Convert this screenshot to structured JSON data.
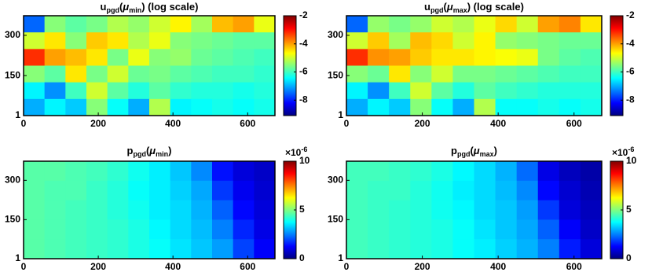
{
  "chart_data": [
    {
      "type": "heatmap",
      "title": [
        {
          "text": "u"
        },
        {
          "text": "pgd",
          "sub": true
        },
        {
          "text": "("
        },
        {
          "text": "μ",
          "italic": true
        },
        {
          "text": "min",
          "sub": true
        },
        {
          "text": ") (log scale)"
        }
      ],
      "colormap": "jet",
      "clim": [
        -9.1,
        -2
      ],
      "cticks": [
        -2,
        -4,
        -6,
        -8
      ],
      "xlim": [
        0,
        673
      ],
      "ylim": [
        1,
        373
      ],
      "xticks": [
        0,
        200,
        400,
        600
      ],
      "yticks": [
        1,
        150,
        300
      ],
      "z": [
        [
          -7.5,
          -5.5,
          -5.8,
          -5.6,
          -5.2,
          -5.4,
          -5.0,
          -4.6,
          -5.3,
          -4.2,
          -4.0,
          -4.8
        ],
        [
          -5.0,
          -4.5,
          -5.5,
          -4.3,
          -4.5,
          -5.2,
          -4.8,
          -5.5,
          -5.6,
          -5.7,
          -5.8,
          -5.8
        ],
        [
          -3.2,
          -4.0,
          -4.2,
          -4.5,
          -5.6,
          -4.8,
          -5.5,
          -5.4,
          -5.7,
          -5.8,
          -5.9,
          -6.0
        ],
        [
          -5.5,
          -5.8,
          -4.5,
          -5.6,
          -5.0,
          -5.7,
          -5.6,
          -5.8,
          -5.9,
          -6.0,
          -6.0,
          -6.1
        ],
        [
          -6.5,
          -7.2,
          -6.0,
          -5.0,
          -5.8,
          -6.2,
          -5.8,
          -6.1,
          -6.2,
          -6.2,
          -6.3,
          -6.2
        ],
        [
          -7.0,
          -6.5,
          -6.8,
          -5.5,
          -6.4,
          -7.0,
          -5.2,
          -6.5,
          -6.4,
          -6.3,
          -6.4,
          -6.3
        ]
      ]
    },
    {
      "type": "heatmap",
      "title": [
        {
          "text": "u"
        },
        {
          "text": "pgd",
          "sub": true
        },
        {
          "text": "("
        },
        {
          "text": "μ",
          "italic": true
        },
        {
          "text": "max",
          "sub": true
        },
        {
          "text": ") (log scale)"
        }
      ],
      "colormap": "jet",
      "clim": [
        -9.1,
        -2
      ],
      "cticks": [
        -2,
        -4,
        -6,
        -8
      ],
      "xlim": [
        0,
        673
      ],
      "ylim": [
        1,
        373
      ],
      "xticks": [
        0,
        200,
        400,
        600
      ],
      "yticks": [
        1,
        150,
        300
      ],
      "z": [
        [
          -7.5,
          -5.4,
          -5.6,
          -5.4,
          -5.0,
          -5.2,
          -4.8,
          -4.4,
          -5.0,
          -4.0,
          -3.8,
          -4.5
        ],
        [
          -5.0,
          -4.3,
          -5.3,
          -4.2,
          -4.4,
          -5.0,
          -4.6,
          -5.4,
          -5.5,
          -5.6,
          -5.7,
          -5.7
        ],
        [
          -3.2,
          -3.9,
          -4.0,
          -4.3,
          -4.5,
          -4.5,
          -4.6,
          -4.7,
          -4.8,
          -5.6,
          -5.8,
          -5.9
        ],
        [
          -5.5,
          -5.7,
          -4.5,
          -5.5,
          -5.0,
          -5.6,
          -5.6,
          -5.7,
          -5.8,
          -5.9,
          -6.0,
          -6.0
        ],
        [
          -6.5,
          -7.2,
          -6.0,
          -5.0,
          -5.8,
          -6.2,
          -5.8,
          -6.0,
          -6.1,
          -6.2,
          -6.2,
          -6.2
        ],
        [
          -7.0,
          -6.5,
          -6.8,
          -5.5,
          -6.4,
          -7.0,
          -5.2,
          -6.4,
          -6.4,
          -6.3,
          -6.4,
          -6.3
        ]
      ]
    },
    {
      "type": "heatmap",
      "title": [
        {
          "text": "p"
        },
        {
          "text": "pgd",
          "sub": true
        },
        {
          "text": "("
        },
        {
          "text": "μ",
          "italic": true
        },
        {
          "text": "min",
          "sub": true
        },
        {
          "text": ")"
        }
      ],
      "colormap": "jet",
      "clim": [
        0,
        10
      ],
      "cticks": [
        0,
        5,
        10
      ],
      "cexponent": {
        "base": "×10",
        "exponent": "-6"
      },
      "xlim": [
        0,
        673
      ],
      "ylim": [
        1,
        373
      ],
      "xticks": [
        0,
        200,
        400,
        600
      ],
      "yticks": [
        1,
        150,
        300
      ],
      "z": [
        [
          4.6,
          4.6,
          4.5,
          4.4,
          4.2,
          3.9,
          3.6,
          3.2,
          2.6,
          1.4,
          0.9,
          0.7
        ],
        [
          4.6,
          4.5,
          4.5,
          4.3,
          4.1,
          3.8,
          3.6,
          3.3,
          2.9,
          1.8,
          1.1,
          0.8
        ],
        [
          4.6,
          4.5,
          4.4,
          4.3,
          4.1,
          3.9,
          3.6,
          3.4,
          3.0,
          2.2,
          1.3,
          0.9
        ],
        [
          4.6,
          4.5,
          4.4,
          4.3,
          4.2,
          4.0,
          3.7,
          3.4,
          3.1,
          2.5,
          1.6,
          1.0
        ],
        [
          4.6,
          4.5,
          4.4,
          4.3,
          4.2,
          4.0,
          3.8,
          3.5,
          3.2,
          2.8,
          1.9,
          1.2
        ]
      ]
    },
    {
      "type": "heatmap",
      "title": [
        {
          "text": "p"
        },
        {
          "text": "pgd",
          "sub": true
        },
        {
          "text": "("
        },
        {
          "text": "μ",
          "italic": true
        },
        {
          "text": "max",
          "sub": true
        },
        {
          "text": ")"
        }
      ],
      "colormap": "jet",
      "clim": [
        0,
        10
      ],
      "cticks": [
        0,
        5,
        10
      ],
      "cexponent": {
        "base": "×10",
        "exponent": "-6"
      },
      "xlim": [
        0,
        673
      ],
      "ylim": [
        1,
        373
      ],
      "xticks": [
        0,
        200,
        400,
        600
      ],
      "yticks": [
        1,
        150,
        300
      ],
      "z": [
        [
          4.4,
          4.4,
          4.3,
          4.2,
          4.0,
          3.7,
          3.4,
          3.0,
          2.3,
          1.0,
          0.6,
          0.4
        ],
        [
          4.4,
          4.3,
          4.3,
          4.1,
          3.9,
          3.6,
          3.4,
          3.1,
          2.6,
          1.3,
          0.8,
          0.5
        ],
        [
          4.4,
          4.3,
          4.2,
          4.1,
          3.9,
          3.7,
          3.4,
          3.2,
          2.8,
          1.8,
          0.9,
          0.6
        ],
        [
          4.4,
          4.3,
          4.2,
          4.1,
          4.0,
          3.8,
          3.5,
          3.2,
          2.9,
          2.2,
          1.2,
          0.7
        ],
        [
          4.4,
          4.3,
          4.2,
          4.1,
          4.0,
          3.8,
          3.6,
          3.3,
          3.0,
          2.5,
          1.5,
          0.9
        ]
      ]
    }
  ]
}
